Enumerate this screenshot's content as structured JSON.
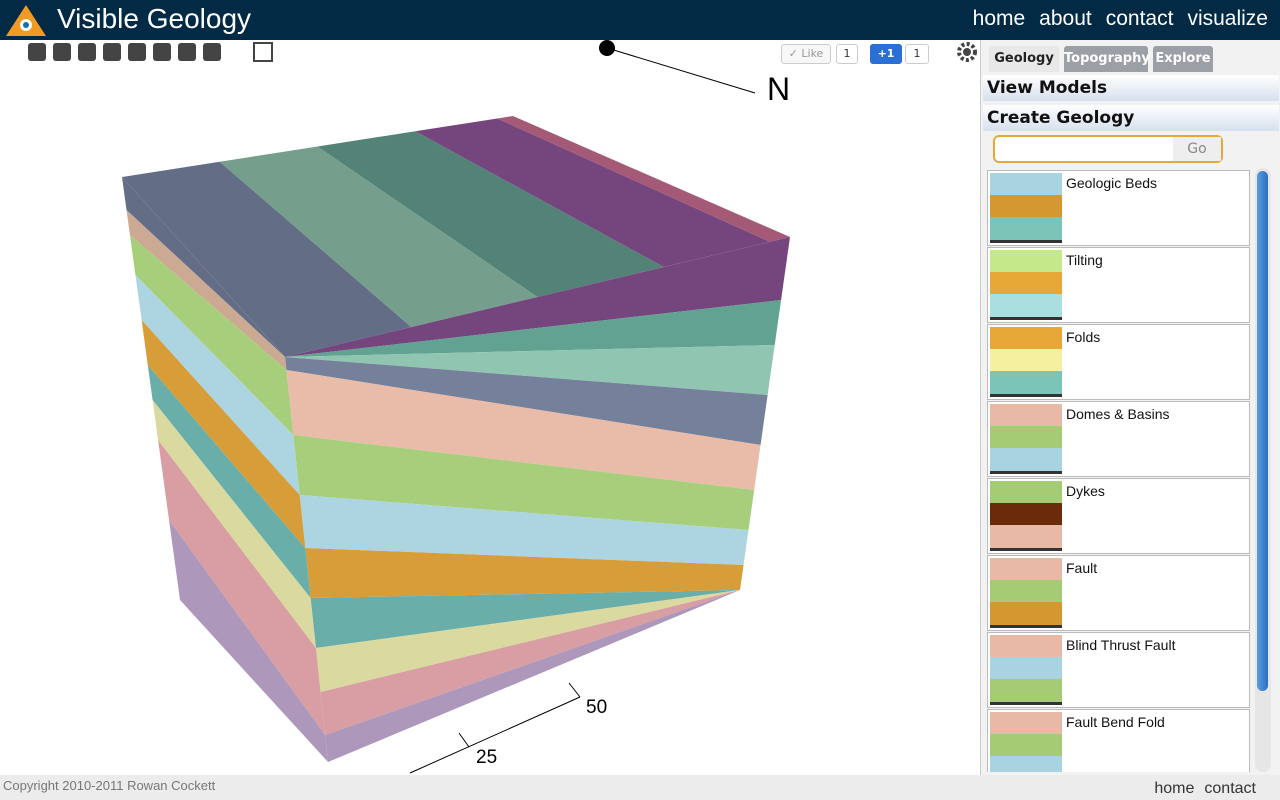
{
  "header": {
    "title": "Visible Geology",
    "nav": [
      "home",
      "about",
      "contact",
      "visualize"
    ]
  },
  "social": {
    "like": "Like",
    "like_count": 1,
    "plus": "+1",
    "plus_count": 1
  },
  "viewer": {
    "north_label": "N",
    "scale_labels": [
      50,
      25
    ]
  },
  "sidebar": {
    "tabs": [
      "Geology",
      "Topography",
      "Explore"
    ],
    "sections": [
      "View Models",
      "Create Geology"
    ],
    "search_button": "Go",
    "items": [
      "Geologic Beds",
      "Tilting",
      "Folds",
      "Domes & Basins",
      "Dykes",
      "Fault",
      "Blind Thrust Fault",
      "Fault Bend Fold"
    ]
  },
  "footer": {
    "copyright": "Copyright 2010-2011 Rowan Cockett",
    "links": [
      "home",
      "contact"
    ]
  }
}
